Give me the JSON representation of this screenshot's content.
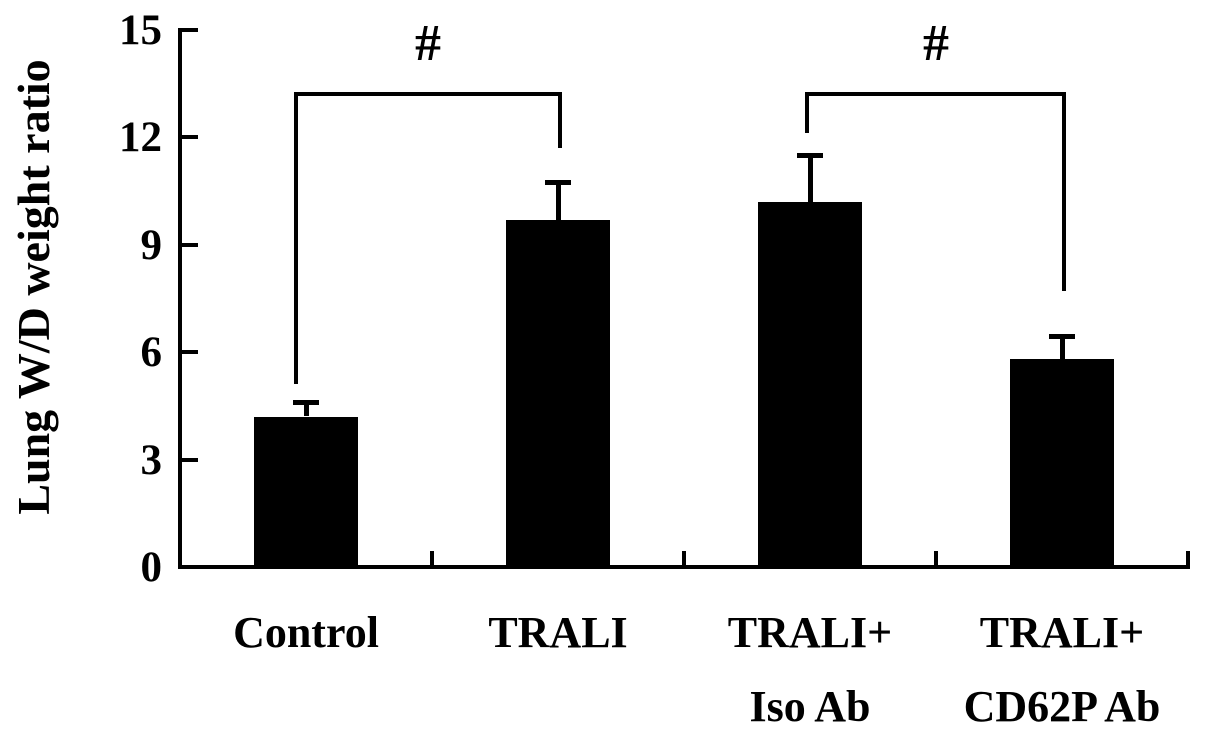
{
  "figure": {
    "background_color": "#ffffff",
    "foreground_color": "#000000"
  },
  "chart_data": {
    "type": "bar",
    "title": "",
    "xlabel": "",
    "ylabel": "Lung W/D weight ratio",
    "ylim": [
      0,
      15
    ],
    "yticks": [
      15,
      12,
      9,
      6,
      3,
      0
    ],
    "grid": false,
    "legend": "none",
    "bar_color": "#000000",
    "categories": [
      {
        "lines": [
          "Control"
        ]
      },
      {
        "lines": [
          "TRALI"
        ]
      },
      {
        "lines": [
          "TRALI+",
          "Iso Ab"
        ]
      },
      {
        "lines": [
          "TRALI+",
          "CD62P Ab"
        ]
      }
    ],
    "values": [
      4.2,
      9.7,
      10.2,
      5.8
    ],
    "errors_upper": [
      0.4,
      1.05,
      1.3,
      0.65
    ],
    "error_style": "upper-cap",
    "significance_brackets": [
      {
        "label": "#",
        "from_index": 0,
        "to_index": 1,
        "bar_y": 13.2,
        "left_leg_end_y": 5.1,
        "right_leg_end_y": 11.7
      },
      {
        "label": "#",
        "from_index": 2,
        "to_index": 3,
        "bar_y": 13.2,
        "left_leg_end_y": 12.1,
        "right_leg_end_y": 7.7
      }
    ]
  }
}
